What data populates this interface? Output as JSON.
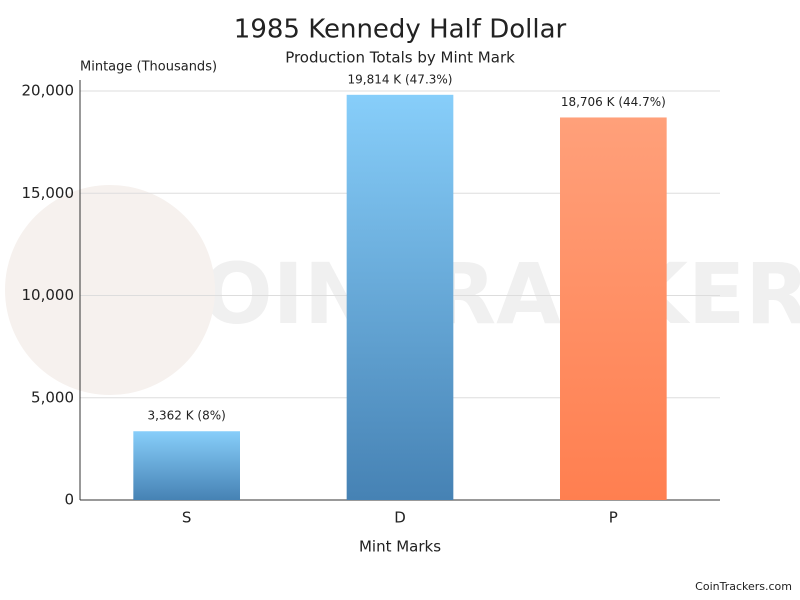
{
  "chart_data": {
    "type": "bar",
    "title": "1985 Kennedy Half Dollar",
    "subtitle": "Production Totals by Mint Mark",
    "y_axis_label": "Mintage (Thousands)",
    "x_axis_label": "Mint Marks",
    "categories": [
      "S",
      "D",
      "P"
    ],
    "values": [
      3362,
      19814,
      18706
    ],
    "value_labels": [
      "3,362 K (8%)",
      "19,814 K (47.3%)",
      "18,706 K (44.7%)"
    ],
    "colors": [
      [
        "#87cefa",
        "#4682b4"
      ],
      [
        "#87cefa",
        "#4682b4"
      ],
      [
        "#ffa07a",
        "#ff7f50"
      ]
    ],
    "ylim": [
      0,
      20000
    ],
    "yticks": [
      0,
      {
        "value": 5000,
        "label": "5,000"
      },
      {
        "value": 10000,
        "label": "10,000"
      },
      {
        "value": 15000,
        "label": "15,000"
      },
      {
        "value": 20000,
        "label": "20,000"
      }
    ],
    "grid": true,
    "watermark": "COINTRACKERS",
    "footer": "CoinTrackers.com"
  }
}
